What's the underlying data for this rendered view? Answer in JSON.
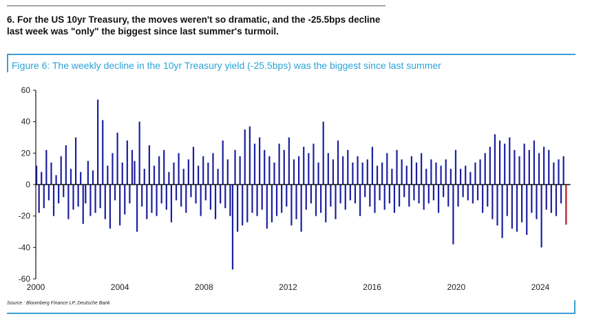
{
  "headline": "6. For the US 10yr Treasury, the moves weren't so dramatic, and the -25.5bps decline last week was \"only\" the biggest since last summer's turmoil.",
  "caption": "Figure 6: The weekly decline in the 10yr Treasury yield (-25.5bps) was the biggest since last summer",
  "source": "Source : Bloomberg Finance LP, Deutsche Bank",
  "colors": {
    "bars": "#1a1f9e",
    "latest": "#c0303a",
    "accent": "#2ba3d6"
  },
  "chart_data": {
    "type": "bar",
    "title": "",
    "xlabel": "",
    "ylabel": "",
    "ylim": [
      -60,
      60
    ],
    "xlim": [
      2000,
      2025.3
    ],
    "grid": false,
    "yticks": [
      "60",
      "40",
      "20",
      "0",
      "-20",
      "-40",
      "-60"
    ],
    "xticks": [
      "2000",
      "2004",
      "2008",
      "2012",
      "2016",
      "2020",
      "2024"
    ],
    "series_note_unit": "bps",
    "values": [
      12,
      -18,
      8,
      -15,
      22,
      -10,
      14,
      -20,
      6,
      -12,
      18,
      -8,
      25,
      -22,
      10,
      -16,
      30,
      -14,
      8,
      -25,
      -12,
      15,
      -20,
      9,
      -18,
      54,
      -15,
      41,
      -22,
      12,
      -28,
      20,
      -10,
      33,
      -26,
      14,
      -19,
      28,
      -12,
      22,
      15,
      -30,
      40,
      -14,
      10,
      -22,
      25,
      -18,
      12,
      -20,
      18,
      -12,
      22,
      -16,
      8,
      -24,
      14,
      -10,
      20,
      -14,
      10,
      -18,
      16,
      -8,
      24,
      -12,
      12,
      -20,
      18,
      -10,
      14,
      -16,
      20,
      -22,
      10,
      -12,
      28,
      -15,
      16,
      -20,
      -54,
      22,
      -30,
      18,
      -26,
      35,
      -24,
      37,
      -18,
      26,
      -20,
      30,
      -16,
      22,
      -28,
      18,
      -24,
      14,
      -20,
      26,
      -18,
      22,
      -14,
      30,
      -26,
      16,
      -22,
      18,
      -30,
      24,
      -16,
      20,
      -12,
      26,
      -20,
      14,
      -18,
      40,
      -24,
      20,
      -14,
      16,
      -22,
      28,
      -12,
      18,
      -16,
      22,
      -10,
      14,
      -12,
      18,
      -20,
      14,
      -8,
      16,
      -14,
      24,
      -18,
      12,
      -10,
      14,
      -16,
      20,
      -12,
      10,
      -18,
      22,
      -14,
      16,
      -8,
      12,
      -14,
      18,
      -10,
      14,
      -12,
      20,
      -16,
      10,
      -12,
      16,
      -10,
      14,
      -18,
      12,
      -8,
      16,
      -14,
      10,
      -38,
      22,
      -14,
      10,
      -8,
      12,
      -10,
      8,
      -12,
      14,
      -10,
      16,
      -18,
      20,
      -14,
      24,
      -22,
      32,
      -26,
      28,
      -34,
      26,
      -20,
      30,
      -28,
      22,
      -30,
      18,
      -24,
      26,
      -32,
      22,
      -18,
      28,
      -22,
      20,
      -40,
      24,
      -16,
      22,
      -18,
      14,
      -20,
      16,
      -12,
      18,
      -25.5
    ]
  }
}
